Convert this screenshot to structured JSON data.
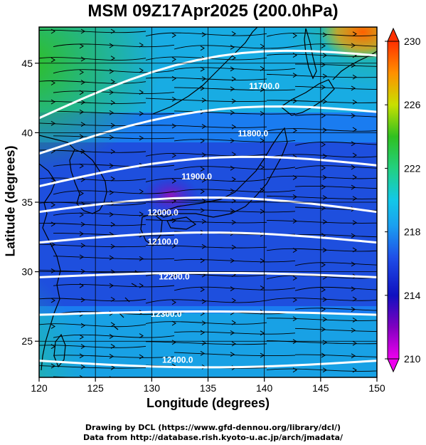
{
  "title": "MSM 09Z17Apr2025 (200.0hPa)",
  "xlabel": "Longitude (degrees)",
  "ylabel": "Latitude (degrees)",
  "credits": {
    "line1": "Drawing by DCL (https://www.gfd-dennou.org/library/dcl/)",
    "line2": "Data from http://database.rish.kyoto-u.ac.jp/arch/jmadata/"
  },
  "chart_data": {
    "type": "heatmap",
    "x_range": [
      120,
      150
    ],
    "y_range": [
      22.4,
      47.6
    ],
    "x_ticks": [
      120,
      125,
      130,
      135,
      140,
      145,
      150
    ],
    "y_ticks": [
      25,
      30,
      35,
      40,
      45
    ],
    "colorbar": {
      "range": [
        210,
        230
      ],
      "ticks": [
        210,
        214,
        218,
        222,
        226,
        230
      ],
      "colors": [
        "#ee00ee",
        "#8000c0",
        "#1010c0",
        "#1f4fe8",
        "#12c8e8",
        "#22d080",
        "#30c020",
        "#c8e000",
        "#ff9000",
        "#ff3000"
      ]
    },
    "contour_labels": [
      {
        "text": "12400.0",
        "lon": 132.3,
        "lat": 23.7
      },
      {
        "text": "12300.0",
        "lon": 131.3,
        "lat": 27.0
      },
      {
        "text": "12200.0",
        "lon": 132.0,
        "lat": 29.7
      },
      {
        "text": "12100.0",
        "lon": 131.0,
        "lat": 32.2
      },
      {
        "text": "12000.0",
        "lon": 131.0,
        "lat": 34.3
      },
      {
        "text": "11900.0",
        "lon": 134.0,
        "lat": 36.9
      },
      {
        "text": "11800.0",
        "lon": 139.0,
        "lat": 40.0
      },
      {
        "text": "11700.0",
        "lon": 140.0,
        "lat": 43.4
      }
    ]
  }
}
